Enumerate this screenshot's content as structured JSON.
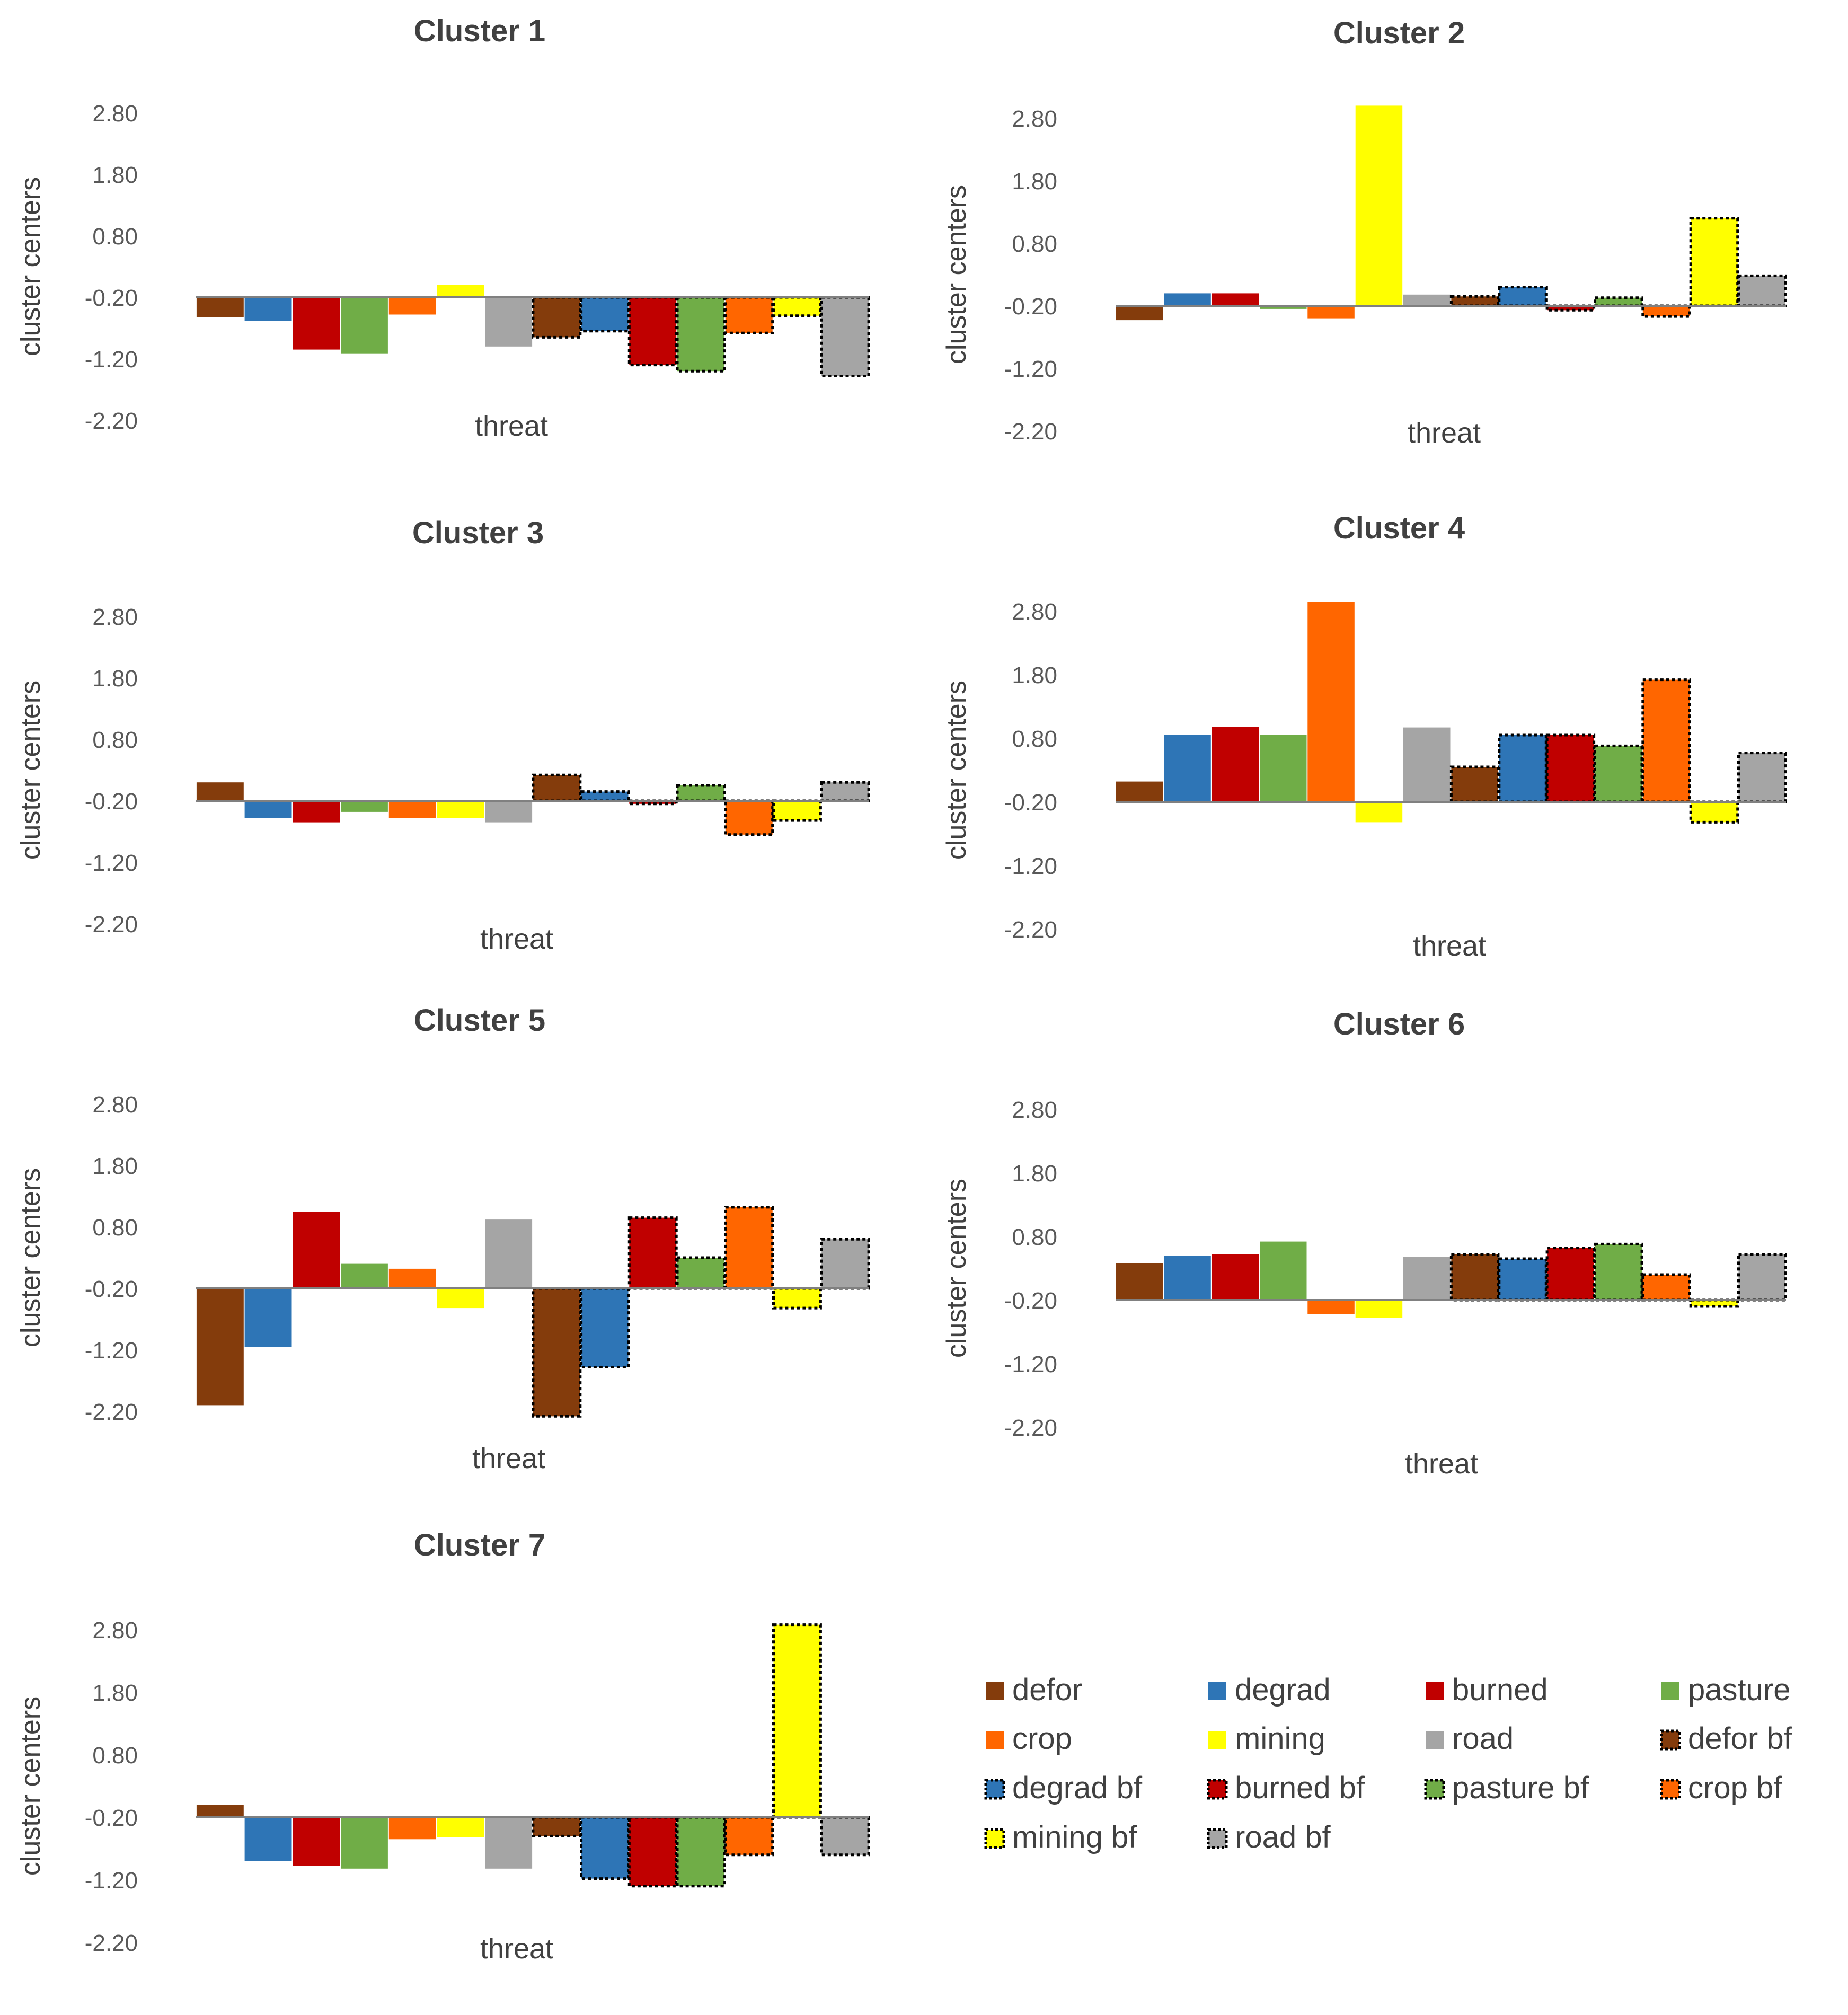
{
  "figure": {
    "background": "#ffffff"
  },
  "series": [
    {
      "name": "defor",
      "color": "#843C0C",
      "dotted": false
    },
    {
      "name": "degrad",
      "color": "#2E75B6",
      "dotted": false
    },
    {
      "name": "burned",
      "color": "#C00000",
      "dotted": false
    },
    {
      "name": "pasture",
      "color": "#70AD47",
      "dotted": false
    },
    {
      "name": "crop",
      "color": "#FF6600",
      "dotted": false
    },
    {
      "name": "mining",
      "color": "#FFFF00",
      "dotted": false
    },
    {
      "name": "road",
      "color": "#A5A5A5",
      "dotted": false
    },
    {
      "name": "defor bf",
      "color": "#843C0C",
      "dotted": true
    },
    {
      "name": "degrad bf",
      "color": "#2E75B6",
      "dotted": true
    },
    {
      "name": "burned bf",
      "color": "#C00000",
      "dotted": true
    },
    {
      "name": "pasture bf",
      "color": "#70AD47",
      "dotted": true
    },
    {
      "name": "crop bf",
      "color": "#FF6600",
      "dotted": true
    },
    {
      "name": "mining bf",
      "color": "#FFFF00",
      "dotted": true
    },
    {
      "name": "road bf",
      "color": "#A5A5A5",
      "dotted": true
    }
  ],
  "chart_data": [
    {
      "type": "bar",
      "title": "Cluster 1",
      "xlabel": "threat",
      "ylabel": "cluster centers",
      "ylim": [
        -2.2,
        2.8
      ],
      "yticks": [
        "2.80",
        "1.80",
        "0.80",
        "-0.20",
        "-1.20",
        "-2.20"
      ],
      "baseline": -0.2,
      "values": [
        -0.52,
        -0.58,
        -1.05,
        -1.12,
        -0.48,
        0,
        -1.0,
        -0.85,
        -0.75,
        -1.3,
        -1.4,
        -0.78,
        -0.5,
        -1.48
      ]
    },
    {
      "type": "bar",
      "title": "Cluster 2",
      "xlabel": "threat",
      "ylabel": "cluster centers",
      "ylim": [
        -2.2,
        2.8
      ],
      "yticks": [
        "2.80",
        "1.80",
        "0.80",
        "-0.20",
        "-1.20",
        "-2.20"
      ],
      "baseline": -0.2,
      "values": [
        -0.43,
        0.0,
        0,
        -0.25,
        -0.4,
        3.0,
        -0.02,
        -0.05,
        0.1,
        -0.27,
        -0.07,
        -0.37,
        1.2,
        0.28
      ]
    },
    {
      "type": "bar",
      "title": "Cluster 3",
      "xlabel": "threat",
      "ylabel": "cluster centers",
      "ylim": [
        -2.2,
        2.8
      ],
      "yticks": [
        "2.80",
        "1.80",
        "0.80",
        "-0.20",
        "-1.20",
        "-2.20"
      ],
      "baseline": -0.2,
      "values": [
        0.1,
        -0.48,
        -0.55,
        -0.38,
        -0.48,
        -0.48,
        -0.55,
        0.22,
        -0.05,
        -0.25,
        0.05,
        -0.75,
        -0.52,
        0.1
      ]
    },
    {
      "type": "bar",
      "title": "Cluster 4",
      "xlabel": "threat",
      "ylabel": "cluster centers",
      "ylim": [
        -2.2,
        2.8
      ],
      "yticks": [
        "2.80",
        "1.80",
        "0.80",
        "-0.20",
        "-1.20",
        "-2.20"
      ],
      "baseline": -0.2,
      "values": [
        0.12,
        0.85,
        0.98,
        0.85,
        2.95,
        -0.52,
        0.97,
        0.35,
        0.85,
        0.85,
        0.68,
        1.72,
        -0.52,
        0.57
      ]
    },
    {
      "type": "bar",
      "title": "Cluster 5",
      "xlabel": "threat",
      "ylabel": "cluster centers",
      "ylim": [
        -2.2,
        2.8
      ],
      "yticks": [
        "2.80",
        "1.80",
        "0.80",
        "-0.20",
        "-1.20",
        "-2.20"
      ],
      "baseline": -0.2,
      "values": [
        -2.1,
        -1.15,
        1.05,
        0.2,
        0.12,
        -0.52,
        0.92,
        -2.28,
        -1.48,
        0.95,
        0.3,
        1.12,
        -0.52,
        0.6
      ]
    },
    {
      "type": "bar",
      "title": "Cluster 6",
      "xlabel": "threat",
      "ylabel": "cluster centers",
      "ylim": [
        -2.2,
        2.8
      ],
      "yticks": [
        "2.80",
        "1.80",
        "0.80",
        "-0.20",
        "-1.20",
        "-2.20"
      ],
      "baseline": -0.2,
      "values": [
        0.38,
        0.5,
        0.52,
        0.72,
        -0.42,
        -0.48,
        0.48,
        0.52,
        0.45,
        0.62,
        0.68,
        0.2,
        -0.3,
        0.52
      ]
    },
    {
      "type": "bar",
      "title": "Cluster 7",
      "xlabel": "threat",
      "ylabel": "cluster centers",
      "ylim": [
        -2.2,
        2.8
      ],
      "yticks": [
        "2.80",
        "1.80",
        "0.80",
        "-0.20",
        "-1.20",
        "-2.20"
      ],
      "baseline": -0.2,
      "values": [
        0,
        -0.9,
        -0.98,
        -1.02,
        -0.55,
        -0.52,
        -1.02,
        -0.5,
        -1.18,
        -1.3,
        -1.3,
        -0.8,
        2.88,
        -0.8
      ]
    }
  ]
}
